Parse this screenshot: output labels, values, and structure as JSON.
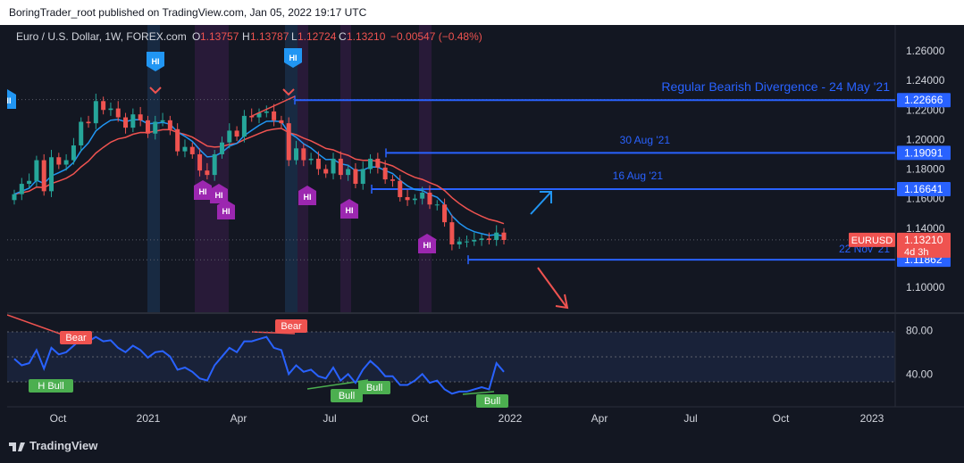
{
  "publish_note": "BoringTrader_root published on TradingView.com, Jan 05, 2022 19:17 UTC",
  "legend": {
    "symbol": "Euro / U.S. Dollar, 1W, FOREX.com",
    "o_label": "O",
    "o": "1.13757",
    "h_label": "H",
    "h": "1.13787",
    "l_label": "L",
    "l": "1.12724",
    "c_label": "C",
    "c": "1.13210",
    "change": "−0.00547 (−0.48%)"
  },
  "price_axis": {
    "ticks": [
      "1.26000",
      "1.24000",
      "1.22000",
      "1.20000",
      "1.18000",
      "1.16000",
      "1.14000",
      "1.10000"
    ]
  },
  "level_labels": {
    "l1": "1.22666",
    "l2": "1.19091",
    "l3": "1.16641",
    "symbol_tag": "EURUSD",
    "current": "1.13210",
    "countdown": "4d 3h",
    "l4": "1.11862"
  },
  "annotations": {
    "divergence": "Regular Bearish Divergence - 24 May '21",
    "aug30": "30 Aug '21",
    "aug16": "16 Aug '21",
    "nov22": "22 Nov '21"
  },
  "markers": {
    "hi": "HI",
    "bear": "Bear",
    "bull": "Bull",
    "hbull": "H Bull"
  },
  "rsi_axis": {
    "ticks": [
      "80.00",
      "40.00"
    ]
  },
  "time_axis": {
    "ticks": [
      "Oct",
      "2021",
      "Apr",
      "Jul",
      "Oct",
      "2022",
      "Apr",
      "Jul",
      "Oct",
      "2023"
    ]
  },
  "footer": {
    "brand": "TradingView"
  },
  "colors": {
    "background": "#131722",
    "up": "#26a69a",
    "down": "#ef5350",
    "level_line": "#2962ff",
    "ema_fast": "#2196f3",
    "ema_slow": "#ef5350",
    "hi_marker_blue": "#2196f3",
    "hi_marker_purple": "#9c27b0",
    "rsi_line": "#2962ff"
  },
  "chart_data": {
    "type": "line",
    "title": "Euro / U.S. Dollar, 1W, FOREX.com",
    "x": [
      "2020-09-28",
      "2020-10-05",
      "2020-10-12",
      "2020-10-19",
      "2020-10-26",
      "2020-11-02",
      "2020-11-09",
      "2020-11-16",
      "2020-11-23",
      "2020-11-30",
      "2020-12-07",
      "2020-12-14",
      "2020-12-21",
      "2020-12-28",
      "2021-01-04",
      "2021-01-11",
      "2021-01-18",
      "2021-01-25",
      "2021-02-01",
      "2021-02-08",
      "2021-02-15",
      "2021-02-22",
      "2021-03-01",
      "2021-03-08",
      "2021-03-15",
      "2021-03-22",
      "2021-03-29",
      "2021-04-05",
      "2021-04-12",
      "2021-04-19",
      "2021-04-26",
      "2021-05-03",
      "2021-05-10",
      "2021-05-17",
      "2021-05-24",
      "2021-05-31",
      "2021-06-07",
      "2021-06-14",
      "2021-06-21",
      "2021-06-28",
      "2021-07-05",
      "2021-07-12",
      "2021-07-19",
      "2021-07-26",
      "2021-08-02",
      "2021-08-09",
      "2021-08-16",
      "2021-08-23",
      "2021-08-30",
      "2021-09-06",
      "2021-09-13",
      "2021-09-20",
      "2021-09-27",
      "2021-10-04",
      "2021-10-11",
      "2021-10-18",
      "2021-10-25",
      "2021-11-01",
      "2021-11-08",
      "2021-11-15",
      "2021-11-22",
      "2021-11-29",
      "2021-12-06",
      "2021-12-13",
      "2021-12-20",
      "2021-12-27",
      "2022-01-03"
    ],
    "series": [
      {
        "name": "",
        "values": [
          1.163,
          1.17,
          1.172,
          1.186,
          1.165,
          1.188,
          1.183,
          1.186,
          1.196,
          1.212,
          1.211,
          1.226,
          1.22,
          1.221,
          1.215,
          1.208,
          1.217,
          1.213,
          1.204,
          1.212,
          1.213,
          1.207,
          1.192,
          1.195,
          1.19,
          1.179,
          1.176,
          1.19,
          1.198,
          1.206,
          1.202,
          1.216,
          1.215,
          1.218,
          1.219,
          1.213,
          1.211,
          1.186,
          1.194,
          1.186,
          1.187,
          1.18,
          1.177,
          1.187,
          1.176,
          1.18,
          1.17,
          1.18,
          1.187,
          1.181,
          1.173,
          1.172,
          1.161,
          1.159,
          1.16,
          1.164,
          1.156,
          1.156,
          1.144,
          1.129,
          1.131,
          1.131,
          1.132,
          1.133,
          1.132,
          1.137,
          1.132
        ]
      }
    ],
    "rsi": [
      54,
      48,
      50,
      62,
      45,
      64,
      58,
      60,
      66,
      72,
      70,
      74,
      70,
      71,
      64,
      60,
      66,
      62,
      55,
      60,
      61,
      56,
      44,
      46,
      42,
      36,
      34,
      48,
      56,
      64,
      60,
      70,
      70,
      72,
      74,
      64,
      62,
      40,
      48,
      42,
      44,
      38,
      36,
      46,
      34,
      40,
      32,
      44,
      52,
      46,
      38,
      38,
      30,
      30,
      34,
      40,
      32,
      34,
      26,
      22,
      24,
      24,
      26,
      28,
      26,
      50,
      42
    ],
    "levels": [
      1.22666,
      1.19091,
      1.16641,
      1.11862
    ],
    "current_price": 1.1321,
    "ylim": [
      1.09,
      1.27
    ],
    "rsi_ylim": [
      10,
      95
    ],
    "xlabel": "",
    "ylabel": ""
  }
}
